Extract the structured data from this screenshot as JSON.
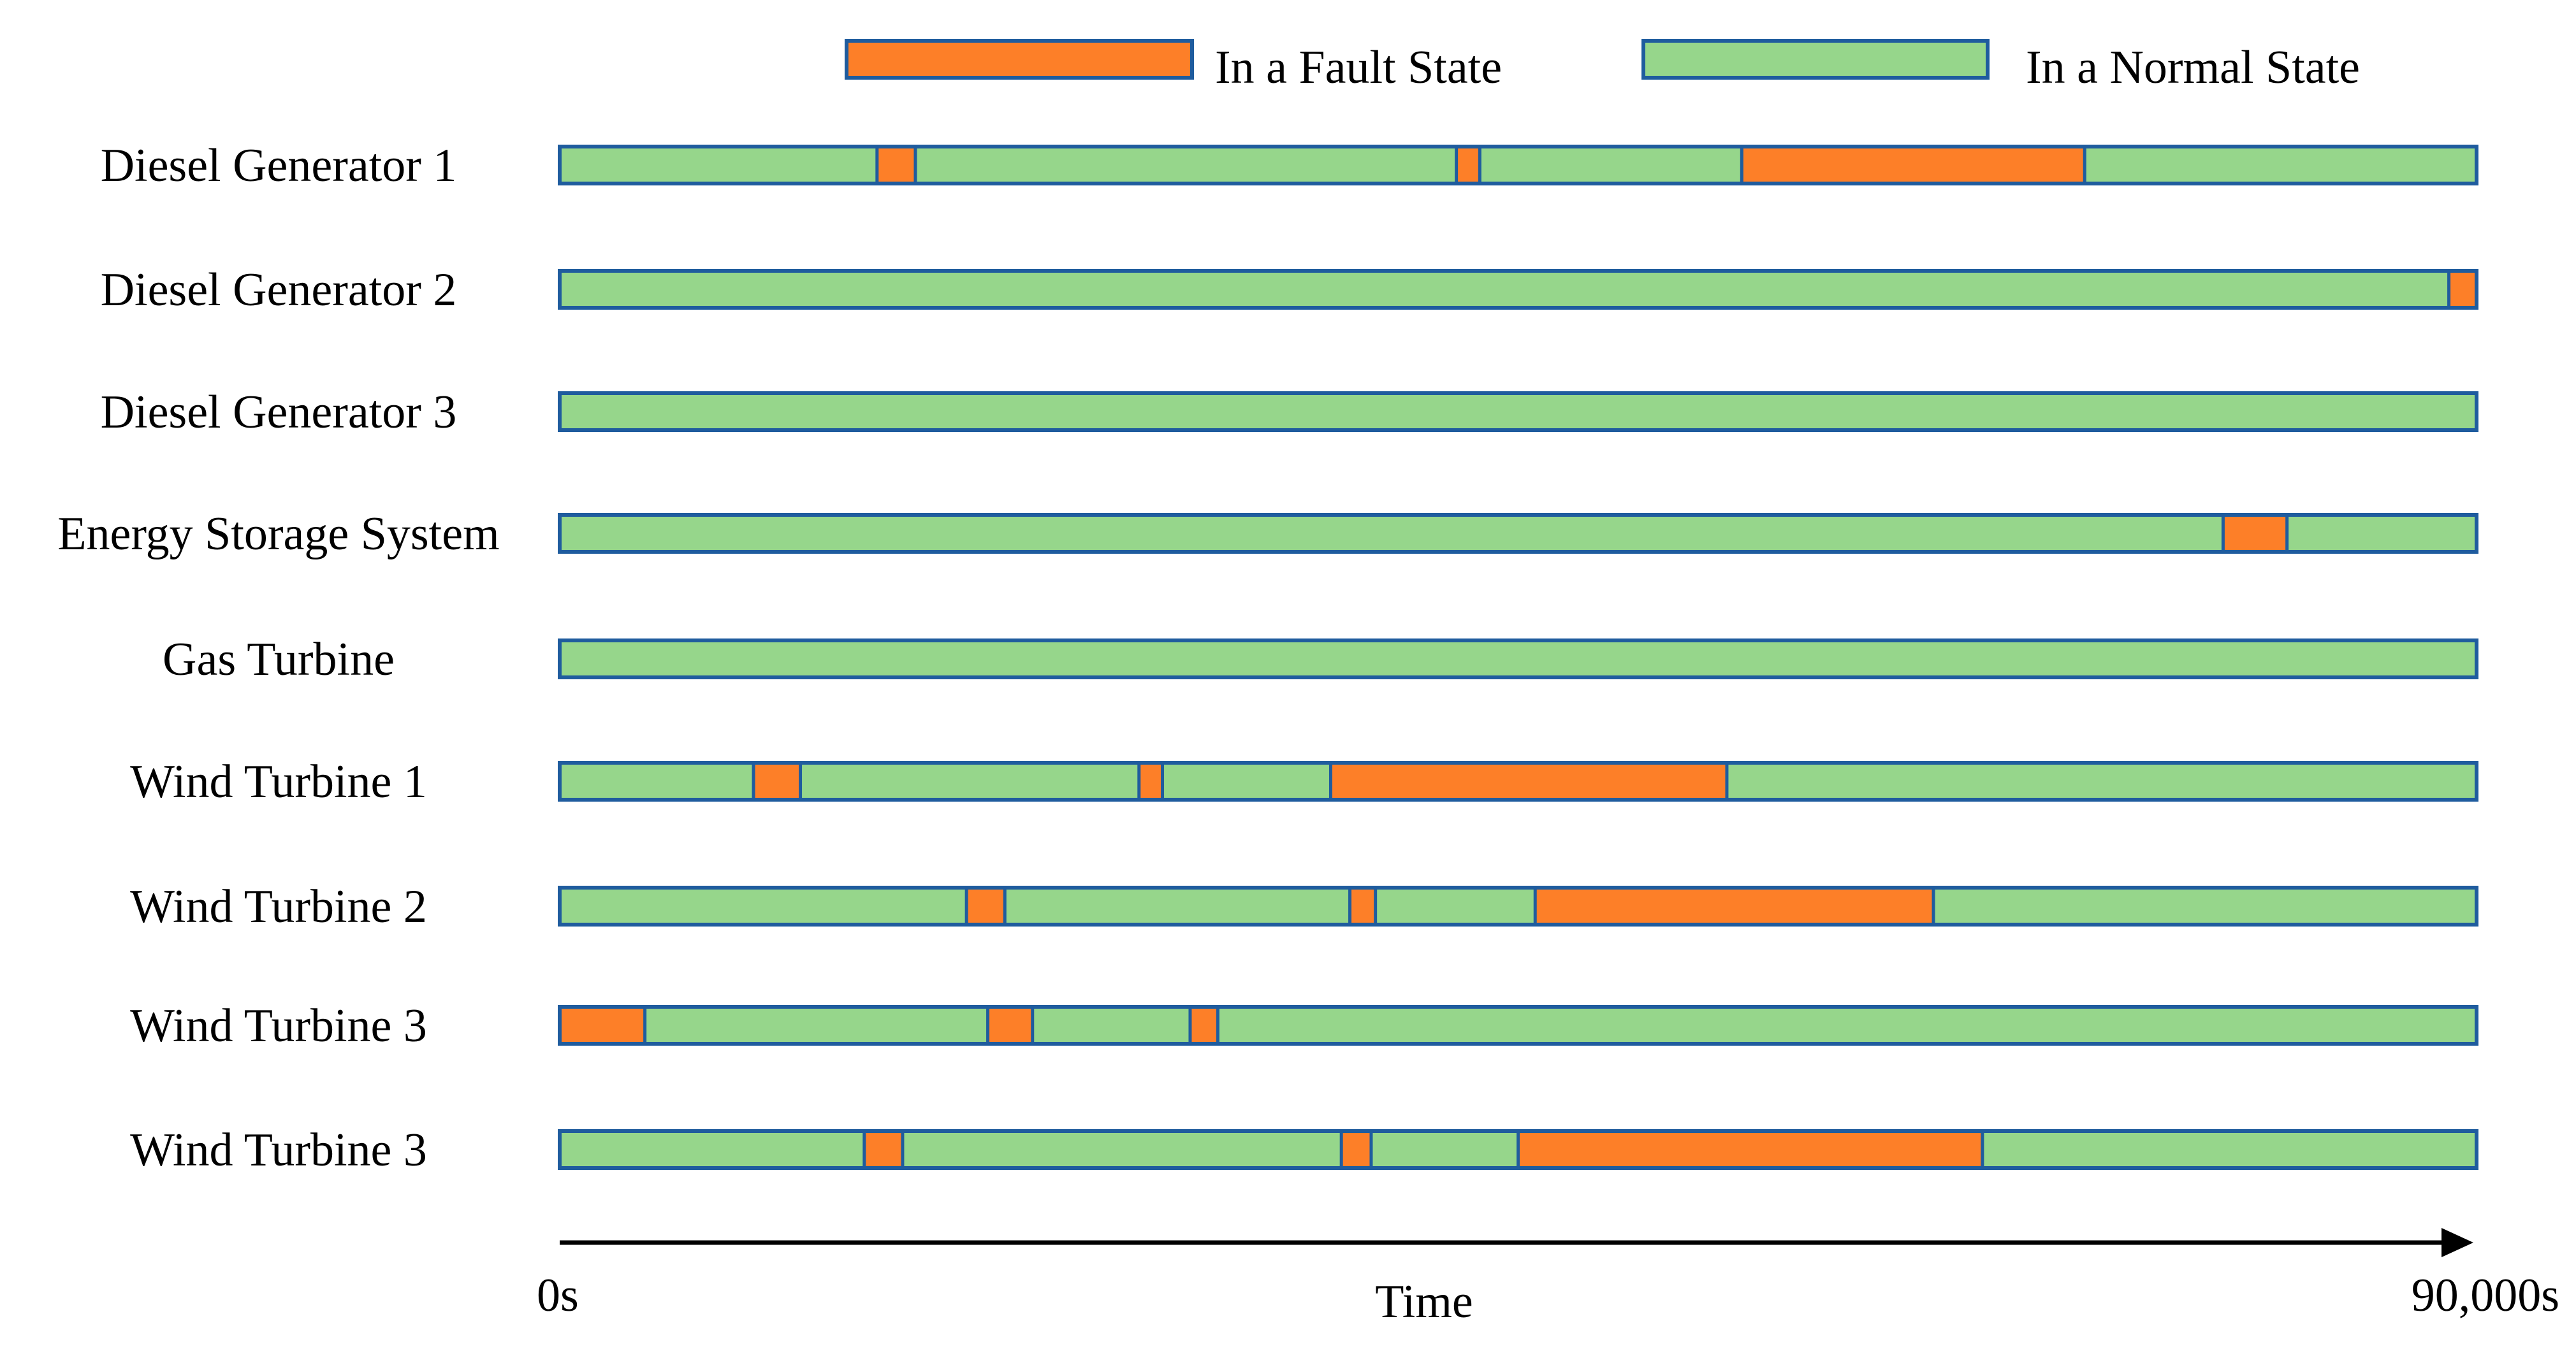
{
  "chart_data": {
    "type": "timeline",
    "x_unit": "s",
    "xlim": [
      0,
      90000
    ],
    "xlabel": "Time",
    "x_start_label": "0s",
    "x_end_label": "90,000s",
    "legend": {
      "placement": "top-right",
      "entries": [
        {
          "key": "fault",
          "label": "In a Fault State"
        },
        {
          "key": "normal",
          "label": "In a Normal State"
        }
      ]
    },
    "colors": {
      "fault": "#fd7f28",
      "normal": "#96d68b",
      "border": "#1f5c9e",
      "axis": "#000000"
    },
    "rows": [
      {
        "label": "Diesel Generator 1",
        "faults": [
          [
            14900,
            16700
          ],
          [
            42100,
            43200
          ],
          [
            55500,
            71600
          ]
        ]
      },
      {
        "label": "Diesel Generator 2",
        "faults": [
          [
            88700,
            90000
          ]
        ]
      },
      {
        "label": "Diesel Generator 3",
        "faults": []
      },
      {
        "label": "Energy Storage System",
        "faults": [
          [
            78100,
            81100
          ]
        ]
      },
      {
        "label": "Gas Turbine",
        "faults": []
      },
      {
        "label": "Wind Turbine 1",
        "faults": [
          [
            9100,
            11300
          ],
          [
            27200,
            28300
          ],
          [
            36200,
            54800
          ]
        ]
      },
      {
        "label": "Wind Turbine 2",
        "faults": [
          [
            19100,
            20900
          ],
          [
            37100,
            38300
          ],
          [
            45800,
            64500
          ]
        ]
      },
      {
        "label": "Wind Turbine 3",
        "faults": [
          [
            0,
            4000
          ],
          [
            20100,
            22200
          ],
          [
            29600,
            30900
          ]
        ]
      },
      {
        "label": "Wind Turbine 3",
        "faults": [
          [
            14300,
            16100
          ],
          [
            36700,
            38100
          ],
          [
            45000,
            66800
          ]
        ]
      }
    ]
  }
}
